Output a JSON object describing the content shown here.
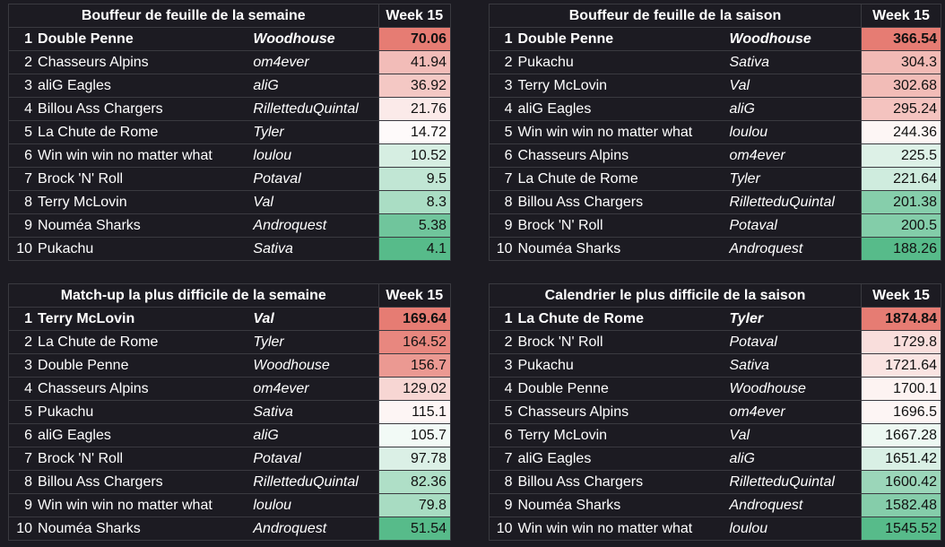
{
  "colors": {
    "background": "#1c1b22",
    "high": "#e67c73",
    "mid": "#ffffff",
    "low": "#57bb8a"
  },
  "panels": [
    {
      "title": "Bouffeur de feuille de la semaine",
      "week_label": "Week 15",
      "rows": [
        {
          "rank": "1",
          "team": "Double Penne",
          "owner": "Woodhouse",
          "value": "70.06"
        },
        {
          "rank": "2",
          "team": "Chasseurs Alpins",
          "owner": "om4ever",
          "value": "41.94"
        },
        {
          "rank": "3",
          "team": "aliG Eagles",
          "owner": "aliG",
          "value": "36.92"
        },
        {
          "rank": "4",
          "team": "Billou Ass Chargers",
          "owner": "RilletteduQuintal",
          "value": "21.76"
        },
        {
          "rank": "5",
          "team": "La Chute de Rome",
          "owner": "Tyler",
          "value": "14.72"
        },
        {
          "rank": "6",
          "team": "Win win win no matter what",
          "owner": "loulou",
          "value": "10.52"
        },
        {
          "rank": "7",
          "team": "Brock 'N' Roll",
          "owner": "Potaval",
          "value": "9.5"
        },
        {
          "rank": "8",
          "team": "Terry McLovin",
          "owner": "Val",
          "value": "8.3"
        },
        {
          "rank": "9",
          "team": "Nouméa Sharks",
          "owner": "Androquest",
          "value": "5.38"
        },
        {
          "rank": "10",
          "team": "Pukachu",
          "owner": "Sativa",
          "value": "4.1"
        }
      ]
    },
    {
      "title": "Bouffeur de feuille de la saison",
      "week_label": "Week 15",
      "rows": [
        {
          "rank": "1",
          "team": "Double Penne",
          "owner": "Woodhouse",
          "value": "366.54"
        },
        {
          "rank": "2",
          "team": "Pukachu",
          "owner": "Sativa",
          "value": "304.3"
        },
        {
          "rank": "3",
          "team": "Terry McLovin",
          "owner": "Val",
          "value": "302.68"
        },
        {
          "rank": "4",
          "team": "aliG Eagles",
          "owner": "aliG",
          "value": "295.24"
        },
        {
          "rank": "5",
          "team": "Win win win no matter what",
          "owner": "loulou",
          "value": "244.36"
        },
        {
          "rank": "6",
          "team": "Chasseurs Alpins",
          "owner": "om4ever",
          "value": "225.5"
        },
        {
          "rank": "7",
          "team": "La Chute de Rome",
          "owner": "Tyler",
          "value": "221.64"
        },
        {
          "rank": "8",
          "team": "Billou Ass Chargers",
          "owner": "RilletteduQuintal",
          "value": "201.38"
        },
        {
          "rank": "9",
          "team": "Brock 'N' Roll",
          "owner": "Potaval",
          "value": "200.5"
        },
        {
          "rank": "10",
          "team": "Nouméa Sharks",
          "owner": "Androquest",
          "value": "188.26"
        }
      ]
    },
    {
      "title": "Match-up la plus difficile de la semaine",
      "week_label": "Week 15",
      "rows": [
        {
          "rank": "1",
          "team": "Terry McLovin",
          "owner": "Val",
          "value": "169.64"
        },
        {
          "rank": "2",
          "team": "La Chute de Rome",
          "owner": "Tyler",
          "value": "164.52"
        },
        {
          "rank": "3",
          "team": "Double Penne",
          "owner": "Woodhouse",
          "value": "156.7"
        },
        {
          "rank": "4",
          "team": "Chasseurs Alpins",
          "owner": "om4ever",
          "value": "129.02"
        },
        {
          "rank": "5",
          "team": "Pukachu",
          "owner": "Sativa",
          "value": "115.1"
        },
        {
          "rank": "6",
          "team": "aliG Eagles",
          "owner": "aliG",
          "value": "105.7"
        },
        {
          "rank": "7",
          "team": "Brock 'N' Roll",
          "owner": "Potaval",
          "value": "97.78"
        },
        {
          "rank": "8",
          "team": "Billou Ass Chargers",
          "owner": "RilletteduQuintal",
          "value": "82.36"
        },
        {
          "rank": "9",
          "team": "Win win win no matter what",
          "owner": "loulou",
          "value": "79.8"
        },
        {
          "rank": "10",
          "team": "Nouméa Sharks",
          "owner": "Androquest",
          "value": "51.54"
        }
      ]
    },
    {
      "title": "Calendrier le plus difficile de la saison",
      "week_label": "Week 15",
      "rows": [
        {
          "rank": "1",
          "team": "La Chute de Rome",
          "owner": "Tyler",
          "value": "1874.84"
        },
        {
          "rank": "2",
          "team": "Brock 'N' Roll",
          "owner": "Potaval",
          "value": "1729.8"
        },
        {
          "rank": "3",
          "team": "Pukachu",
          "owner": "Sativa",
          "value": "1721.64"
        },
        {
          "rank": "4",
          "team": "Double Penne",
          "owner": "Woodhouse",
          "value": "1700.1"
        },
        {
          "rank": "5",
          "team": "Chasseurs Alpins",
          "owner": "om4ever",
          "value": "1696.5"
        },
        {
          "rank": "6",
          "team": "Terry McLovin",
          "owner": "Val",
          "value": "1667.28"
        },
        {
          "rank": "7",
          "team": "aliG Eagles",
          "owner": "aliG",
          "value": "1651.42"
        },
        {
          "rank": "8",
          "team": "Billou Ass Chargers",
          "owner": "RilletteduQuintal",
          "value": "1600.42"
        },
        {
          "rank": "9",
          "team": "Nouméa Sharks",
          "owner": "Androquest",
          "value": "1582.48"
        },
        {
          "rank": "10",
          "team": "Win win win no matter what",
          "owner": "loulou",
          "value": "1545.52"
        }
      ]
    }
  ]
}
